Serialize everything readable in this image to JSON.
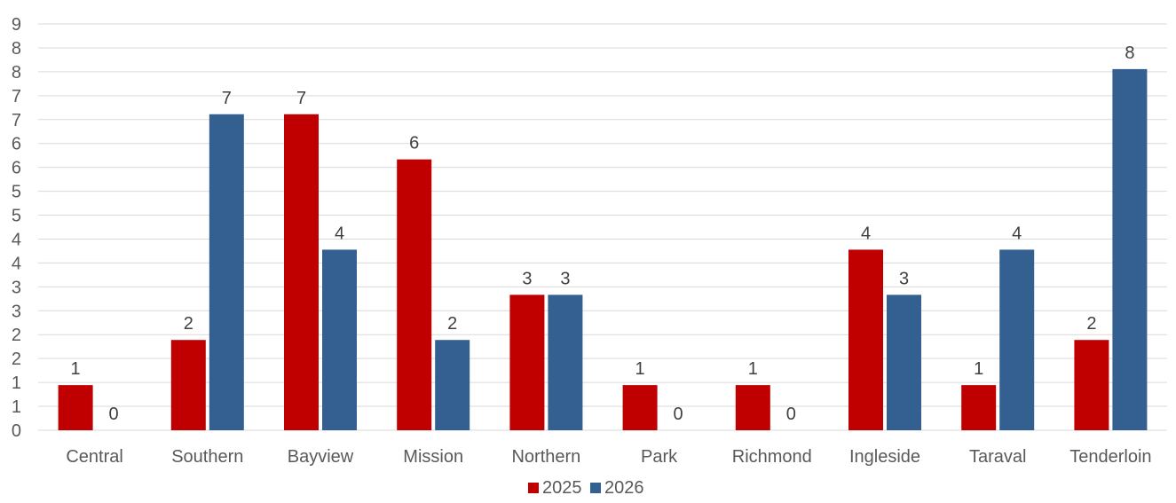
{
  "chart_data": {
    "type": "bar",
    "categories": [
      "Central",
      "Southern",
      "Bayview",
      "Mission",
      "Northern",
      "Park",
      "Richmond",
      "Ingleside",
      "Taraval",
      "Tenderloin"
    ],
    "series": [
      {
        "name": "2025",
        "color": "#c00000",
        "values": [
          1,
          2,
          7,
          6,
          3,
          1,
          1,
          4,
          1,
          2
        ]
      },
      {
        "name": "2026",
        "color": "#335f91",
        "values": [
          0,
          7,
          4,
          2,
          3,
          0,
          0,
          3,
          4,
          8
        ]
      }
    ],
    "title": "",
    "xlabel": "",
    "ylabel": "",
    "ylim": [
      0,
      9
    ],
    "yticks": [
      "0",
      "1",
      "1",
      "2",
      "2",
      "3",
      "3",
      "4",
      "4",
      "5",
      "5",
      "6",
      "6",
      "7",
      "7",
      "8",
      "8",
      "9"
    ],
    "grid": true,
    "legend": "bottom-center",
    "data_labels": true
  }
}
